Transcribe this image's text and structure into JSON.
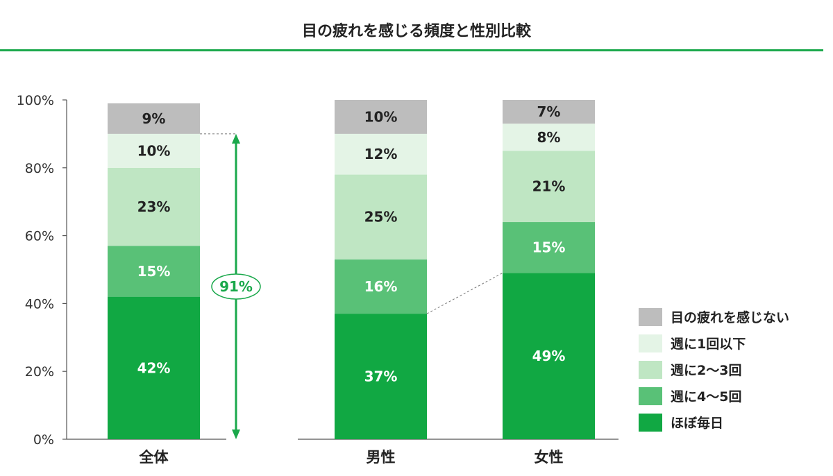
{
  "chart_data": {
    "type": "bar",
    "stacked": true,
    "title": "目の疲れを感じる頻度と性別比較",
    "categories": [
      "全体",
      "男性",
      "女性"
    ],
    "ylim": [
      0,
      100
    ],
    "y_ticks": [
      "0%",
      "20%",
      "40%",
      "60%",
      "80%",
      "100%"
    ],
    "series": [
      {
        "name": "ほぼ毎日",
        "color": "#11a843",
        "text_color": "#ffffff",
        "values": [
          42,
          37,
          49
        ],
        "labels": [
          "42%",
          "37%",
          "49%"
        ]
      },
      {
        "name": "週に4〜5回",
        "color": "#59c177",
        "text_color": "#ffffff",
        "values": [
          15,
          16,
          15
        ],
        "labels": [
          "15%",
          "16%",
          "15%"
        ]
      },
      {
        "name": "週に2〜3回",
        "color": "#bfe6c3",
        "text_color": "#222222",
        "values": [
          23,
          25,
          21
        ],
        "labels": [
          "23%",
          "25%",
          "21%"
        ]
      },
      {
        "name": "週に1回以下",
        "color": "#e4f4e6",
        "text_color": "#222222",
        "values": [
          10,
          12,
          8
        ],
        "labels": [
          "10%",
          "12%",
          "8%"
        ]
      },
      {
        "name": "目の疲れを感じない",
        "color": "#bdbdbd",
        "text_color": "#222222",
        "values": [
          9,
          10,
          7
        ],
        "labels": [
          "9%",
          "10%",
          "7%"
        ]
      }
    ],
    "legend_placement": "right",
    "grid": false,
    "annotation": {
      "label": "91%",
      "color": "#1aa84b"
    },
    "accent_color": "#1aa84b"
  }
}
